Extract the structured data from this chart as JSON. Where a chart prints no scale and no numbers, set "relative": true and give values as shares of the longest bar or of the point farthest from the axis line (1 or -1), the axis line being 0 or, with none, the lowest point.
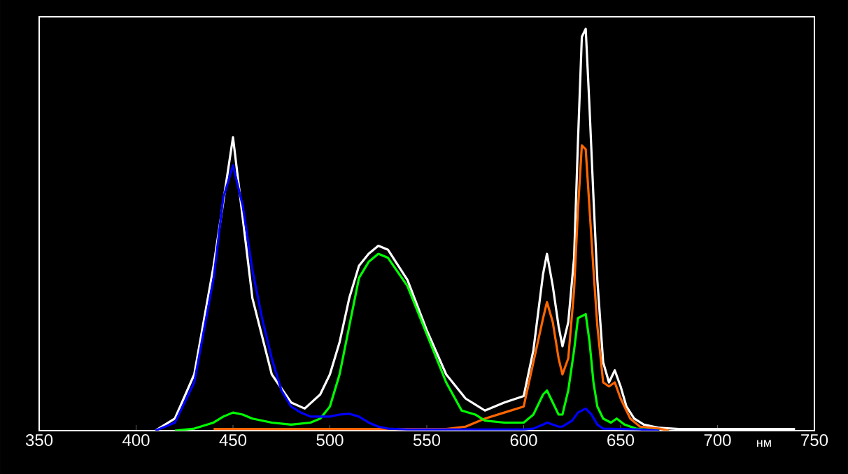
{
  "chart_data": {
    "type": "line",
    "relative": true,
    "xlabel": "нм",
    "xlim": [
      350,
      750
    ],
    "xticks": [
      350,
      400,
      450,
      500,
      550,
      600,
      650,
      700,
      750
    ],
    "tick_labels": "x",
    "marker": "none",
    "series": [
      {
        "color": "#ffffff",
        "x": [
          410,
          420,
          430,
          440,
          450,
          460,
          470,
          480,
          487,
          495,
          500,
          505,
          510,
          515,
          520,
          525,
          530,
          540,
          550,
          560,
          570,
          575,
          580,
          590,
          600,
          605,
          610,
          612,
          615,
          618,
          620,
          623,
          626,
          628,
          630,
          632,
          634,
          636,
          638,
          641,
          644,
          647,
          650,
          653,
          657,
          662,
          670,
          680,
          700,
          720,
          740
        ],
        "values": [
          0,
          0.03,
          0.14,
          0.41,
          0.73,
          0.33,
          0.14,
          0.07,
          0.055,
          0.09,
          0.14,
          0.22,
          0.33,
          0.41,
          0.44,
          0.46,
          0.45,
          0.375,
          0.25,
          0.14,
          0.08,
          0.065,
          0.05,
          0.07,
          0.086,
          0.2,
          0.39,
          0.44,
          0.36,
          0.26,
          0.21,
          0.27,
          0.43,
          0.72,
          0.98,
          1,
          0.8,
          0.58,
          0.375,
          0.17,
          0.12,
          0.15,
          0.11,
          0.06,
          0.03,
          0.015,
          0.007,
          0.004,
          0.004,
          0.004,
          0.004
        ]
      },
      {
        "color": "#ff6600",
        "x": [
          440,
          500,
          560,
          570,
          575,
          580,
          590,
          600,
          605,
          610,
          612,
          615,
          618,
          620,
          623,
          626,
          628,
          630,
          632,
          634,
          636,
          638,
          641,
          644,
          647,
          650,
          655,
          660,
          670,
          675
        ],
        "values": [
          0.004,
          0.004,
          0.004,
          0.01,
          0.02,
          0.03,
          0.045,
          0.06,
          0.17,
          0.28,
          0.32,
          0.27,
          0.18,
          0.14,
          0.18,
          0.35,
          0.55,
          0.71,
          0.7,
          0.55,
          0.4,
          0.26,
          0.12,
          0.11,
          0.12,
          0.08,
          0.03,
          0.01,
          0.005,
          0
        ]
      },
      {
        "color": "#00ff00",
        "x": [
          420,
          430,
          440,
          445,
          450,
          455,
          460,
          470,
          480,
          490,
          495,
          500,
          505,
          510,
          515,
          520,
          525,
          530,
          540,
          550,
          560,
          568,
          575,
          580,
          590,
          600,
          605,
          610,
          612,
          615,
          618,
          620,
          623,
          626,
          628,
          632,
          634,
          636,
          638,
          641,
          645,
          648,
          652,
          658,
          670
        ],
        "values": [
          0,
          0.005,
          0.02,
          0.035,
          0.045,
          0.04,
          0.03,
          0.02,
          0.015,
          0.02,
          0.03,
          0.06,
          0.14,
          0.26,
          0.38,
          0.42,
          0.44,
          0.43,
          0.36,
          0.24,
          0.12,
          0.05,
          0.04,
          0.025,
          0.02,
          0.02,
          0.04,
          0.09,
          0.1,
          0.07,
          0.04,
          0.04,
          0.1,
          0.2,
          0.28,
          0.29,
          0.22,
          0.12,
          0.06,
          0.03,
          0.02,
          0.03,
          0.015,
          0.005,
          0
        ]
      },
      {
        "color": "#0000ff",
        "x": [
          410,
          420,
          430,
          440,
          445,
          450,
          455,
          460,
          465,
          470,
          475,
          480,
          485,
          490,
          500,
          505,
          510,
          515,
          520,
          525,
          530,
          540,
          600,
          605,
          610,
          612,
          615,
          618,
          620,
          625,
          628,
          632,
          635,
          638,
          641,
          660,
          670
        ],
        "values": [
          0,
          0.02,
          0.12,
          0.38,
          0.58,
          0.66,
          0.56,
          0.4,
          0.28,
          0.18,
          0.1,
          0.06,
          0.045,
          0.035,
          0.035,
          0.04,
          0.042,
          0.035,
          0.02,
          0.01,
          0.005,
          0.003,
          0.003,
          0.005,
          0.015,
          0.02,
          0.015,
          0.01,
          0.01,
          0.025,
          0.045,
          0.055,
          0.04,
          0.015,
          0.005,
          0.003,
          0
        ]
      }
    ]
  }
}
